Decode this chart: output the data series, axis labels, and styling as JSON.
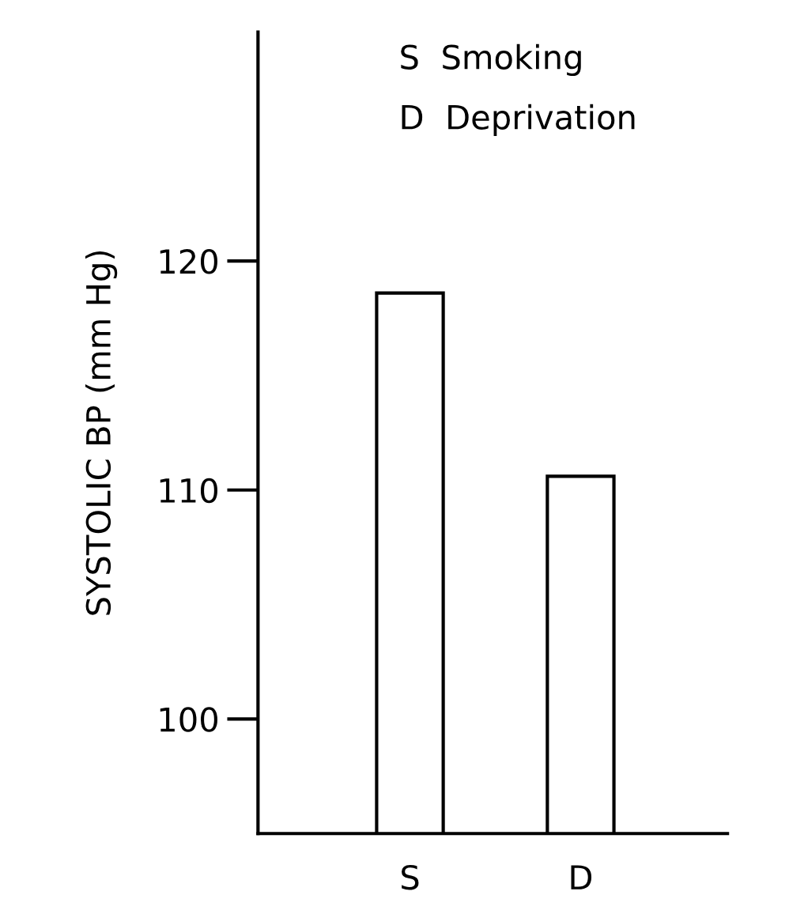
{
  "chart_data": {
    "type": "bar",
    "ylabel": "SYSTOLIC BP (mm Hg)",
    "categories": [
      "S",
      "D"
    ],
    "values": [
      118.6,
      110.6
    ],
    "color": "#ffffff",
    "ylim": [
      95,
      130
    ],
    "yticks": [
      100,
      110,
      120
    ],
    "grid": false,
    "legend": false,
    "annotations": [
      "S  Smoking",
      "D  Deprivation"
    ]
  }
}
